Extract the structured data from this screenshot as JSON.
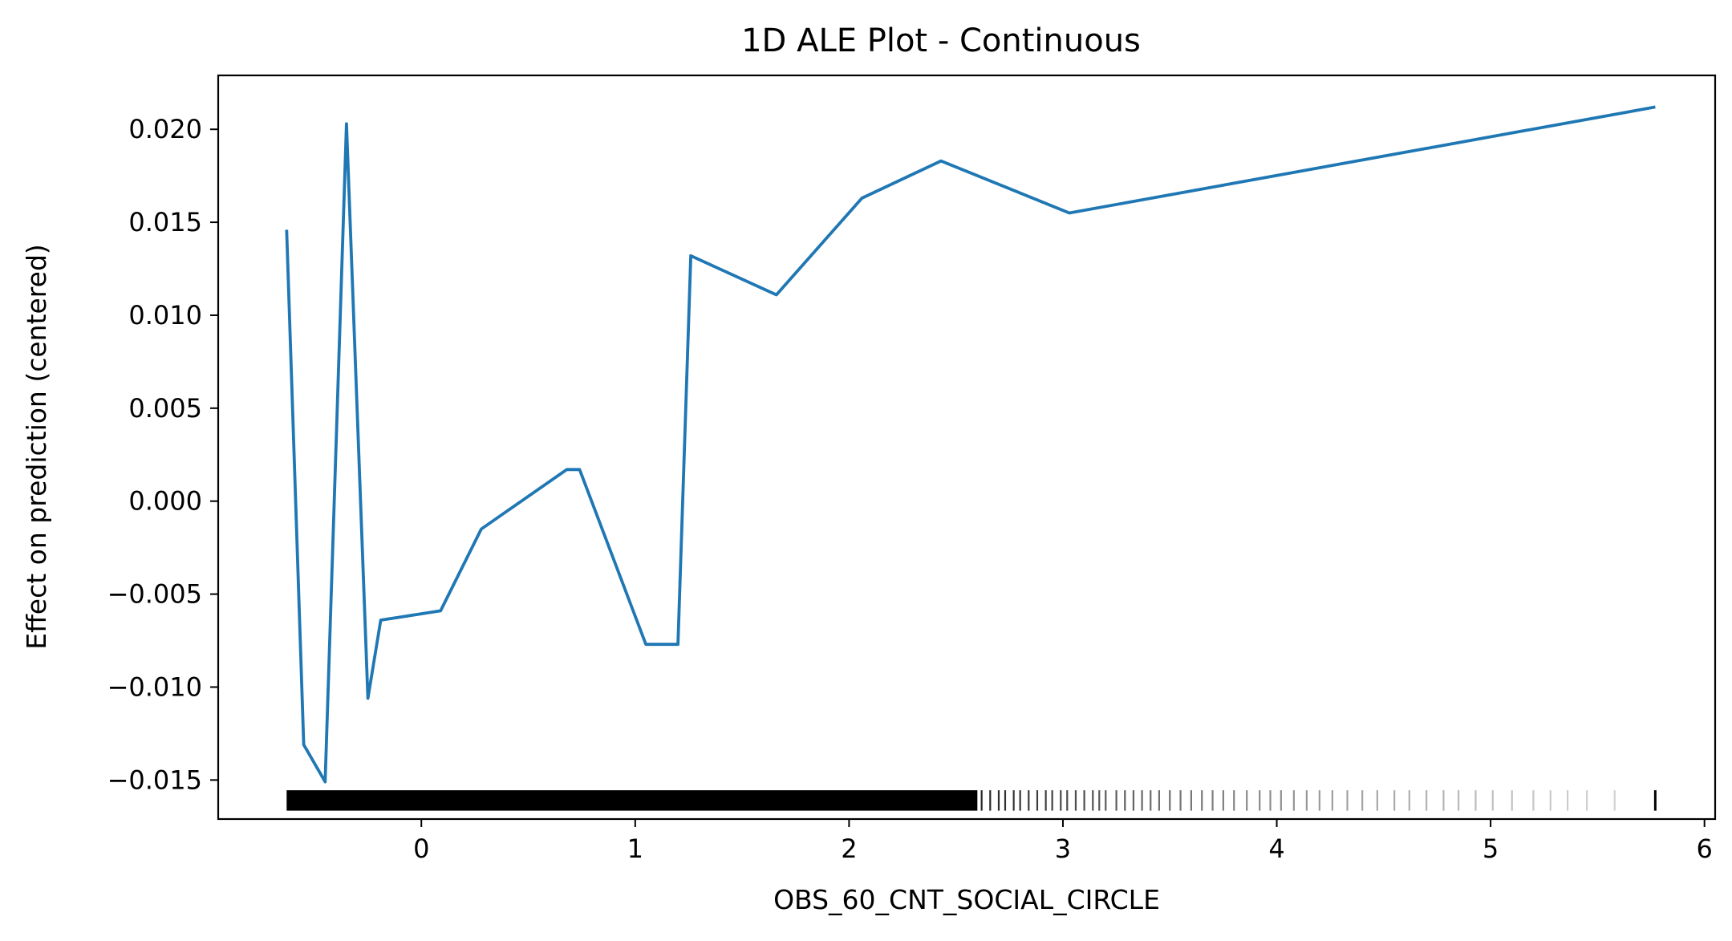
{
  "chart_data": {
    "type": "line",
    "title": "1D ALE Plot - Continuous",
    "xlabel": "OBS_60_CNT_SOCIAL_CIRCLE",
    "ylabel": "Effect on prediction (centered)",
    "xlim": [
      -0.95,
      6.05
    ],
    "ylim": [
      -0.0171,
      0.0229
    ],
    "x_ticks": [
      0,
      1,
      2,
      3,
      4,
      5,
      6
    ],
    "x_tick_labels": [
      "0",
      "1",
      "2",
      "3",
      "4",
      "5",
      "6"
    ],
    "y_ticks": [
      -0.015,
      -0.01,
      -0.005,
      0.0,
      0.005,
      0.01,
      0.015,
      0.02
    ],
    "y_tick_labels": [
      "−0.015",
      "−0.010",
      "−0.005",
      "0.000",
      "0.005",
      "0.010",
      "0.015",
      "0.020"
    ],
    "grid": false,
    "legend": "none",
    "series": [
      {
        "color": "#1f77b4",
        "x": [
          -0.63,
          -0.55,
          -0.45,
          -0.35,
          -0.25,
          -0.19,
          0.09,
          0.28,
          0.68,
          0.74,
          1.05,
          1.2,
          1.26,
          1.66,
          2.06,
          2.43,
          3.03,
          5.77
        ],
        "y": [
          0.0146,
          -0.0131,
          -0.0151,
          0.0203,
          -0.0106,
          -0.0064,
          -0.0059,
          -0.0015,
          0.0017,
          0.0017,
          -0.0077,
          -0.0077,
          0.0132,
          0.0111,
          0.0163,
          0.0183,
          0.0155,
          0.0212
        ]
      }
    ],
    "rug": {
      "color": "#000000",
      "y": -0.0161,
      "height": 0.0011,
      "dense_range": [
        -0.63,
        2.6
      ],
      "points": [
        2.62,
        2.66,
        2.7,
        2.73,
        2.77,
        2.8,
        2.84,
        2.88,
        2.92,
        2.95,
        2.99,
        3.02,
        3.06,
        3.1,
        3.14,
        3.17,
        3.2,
        3.25,
        3.29,
        3.33,
        3.37,
        3.41,
        3.45,
        3.5,
        3.55,
        3.6,
        3.65,
        3.7,
        3.75,
        3.8,
        3.86,
        3.92,
        3.97,
        4.02,
        4.08,
        4.14,
        4.2,
        4.26,
        4.33,
        4.4,
        4.47,
        4.55,
        4.62,
        4.7,
        4.78,
        4.85,
        4.93,
        5.01,
        5.1,
        5.2,
        5.28,
        5.36,
        5.45,
        5.58,
        5.77
      ]
    }
  }
}
